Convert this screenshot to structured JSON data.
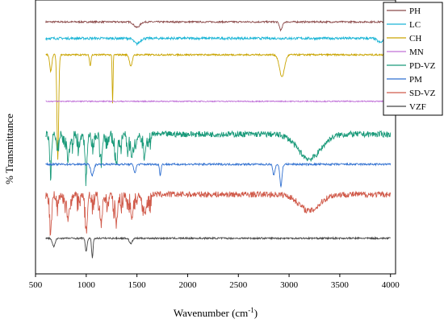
{
  "chart_data": {
    "type": "line",
    "xlabel_main": "Wavenumber (cm",
    "xlabel_sup": "-1",
    "xlabel_end": ")",
    "ylabel": "% Transmittance",
    "xlim": [
      500,
      4050
    ],
    "xticks": [
      500,
      1000,
      1500,
      2000,
      2500,
      3000,
      3500,
      4000
    ],
    "yticks_labeled": false,
    "legend_position": "top-right",
    "series": [
      {
        "name": "PH",
        "color": "#8B4A4A",
        "offset": 92,
        "peaks": [
          [
            1500,
            2,
            40
          ],
          [
            2920,
            3,
            20
          ]
        ],
        "noise": 0.6
      },
      {
        "name": "LC",
        "color": "#1BB5D6",
        "offset": 86,
        "peaks": [
          [
            1500,
            2,
            40
          ],
          [
            3900,
            1.5,
            40
          ]
        ],
        "noise": 0.9
      },
      {
        "name": "CH",
        "color": "#C9A400",
        "offset": 80,
        "peaks": [
          [
            650,
            6,
            15
          ],
          [
            720,
            38,
            12
          ],
          [
            1040,
            4,
            10
          ],
          [
            1260,
            18,
            6
          ],
          [
            1440,
            4,
            20
          ],
          [
            2930,
            8,
            35
          ]
        ],
        "noise": 0.6
      },
      {
        "name": "MN",
        "color": "#C070D8",
        "offset": 63,
        "peaks": [],
        "noise": 0.4
      },
      {
        "name": "PD-VZ",
        "color": "#1A9A7A",
        "offset": 51,
        "peaks": [
          [
            650,
            9,
            12
          ],
          [
            820,
            10,
            14
          ],
          [
            1000,
            12,
            14
          ],
          [
            1150,
            9,
            14
          ],
          [
            1300,
            10,
            14
          ],
          [
            1450,
            9,
            14
          ],
          [
            1580,
            7,
            18
          ],
          [
            3200,
            9,
            160
          ]
        ],
        "noise": 2.2,
        "fingerprint": [
          600,
          1650
        ]
      },
      {
        "name": "PM",
        "color": "#2F6FD0",
        "offset": 40,
        "peaks": [
          [
            1060,
            4,
            20
          ],
          [
            1480,
            3,
            15
          ],
          [
            1730,
            4,
            10
          ],
          [
            2850,
            4,
            15
          ],
          [
            2920,
            8,
            15
          ]
        ],
        "noise": 0.7
      },
      {
        "name": "SD-VZ",
        "color": "#D05A4A",
        "offset": 29,
        "peaks": [
          [
            650,
            10,
            12
          ],
          [
            820,
            9,
            14
          ],
          [
            1000,
            11,
            14
          ],
          [
            1150,
            9,
            14
          ],
          [
            1300,
            10,
            14
          ],
          [
            1450,
            9,
            14
          ],
          [
            1580,
            7,
            18
          ],
          [
            3200,
            6,
            140
          ]
        ],
        "noise": 2.2,
        "fingerprint": [
          600,
          1650
        ]
      },
      {
        "name": "VZF",
        "color": "#444444",
        "offset": 13,
        "peaks": [
          [
            680,
            3,
            20
          ],
          [
            1000,
            5,
            12
          ],
          [
            1060,
            7,
            10
          ],
          [
            1440,
            2,
            20
          ]
        ],
        "noise": 0.6
      }
    ]
  }
}
